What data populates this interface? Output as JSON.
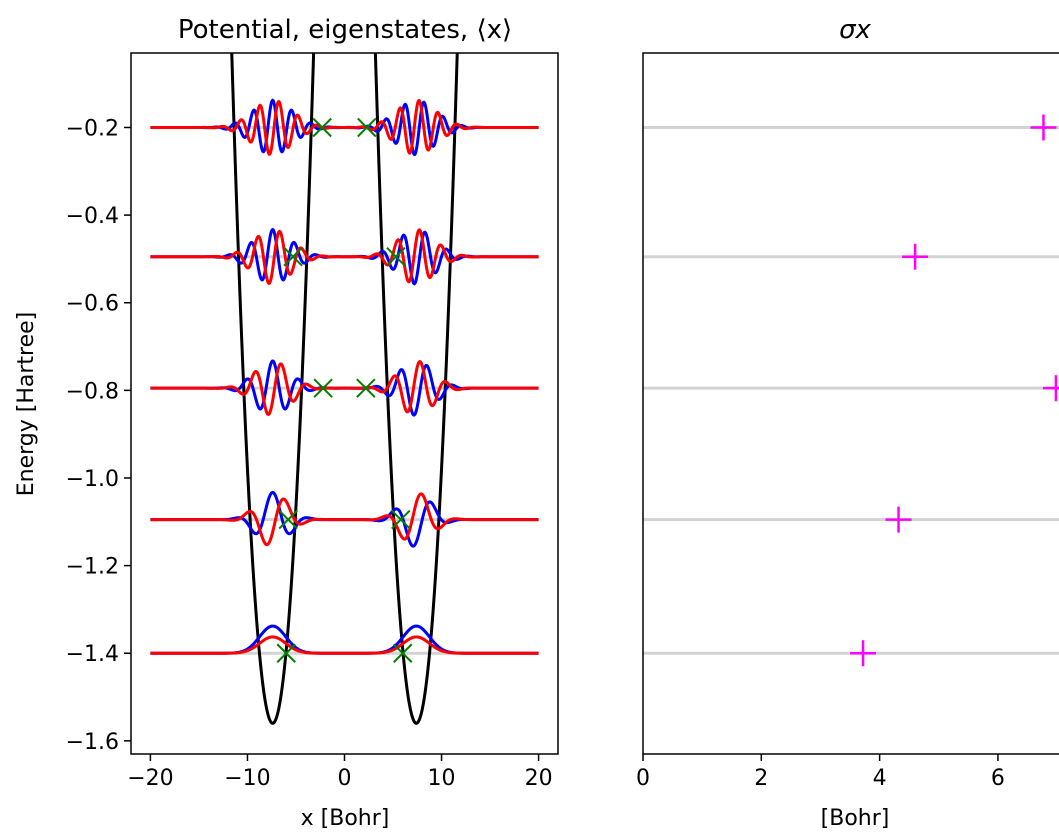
{
  "chart_data": [
    {
      "type": "line",
      "title": "Potential, eigenstates, ⟨x⟩",
      "xlabel": "x [Bohr]",
      "ylabel": "Energy [Hartree]",
      "xlim": [
        -22,
        22
      ],
      "ylim": [
        -1.63,
        -0.03
      ],
      "xticks": [
        -20,
        -10,
        0,
        10,
        20
      ],
      "yticks": [
        -1.6,
        -1.4,
        -1.2,
        -1.0,
        -0.8,
        -0.6,
        -0.4,
        -0.2
      ],
      "grid": false,
      "potential": {
        "type": "double-well",
        "wells": [
          {
            "center": -7.4,
            "k": 0.086
          },
          {
            "center": 7.4,
            "k": 0.086
          }
        ],
        "min_energy": -1.56,
        "color": "#000000"
      },
      "energy_levels": [
        -1.4,
        -1.095,
        -0.795,
        -0.495,
        -0.2
      ],
      "level_line_range": [
        -20,
        20
      ],
      "level_line_color": "#d3d3d3",
      "wavefunction_colors": {
        "real": "#0000ff",
        "imag": "#ff0000"
      },
      "wavefunction_series": [
        "blue",
        "red"
      ],
      "expectation_x": [
        [
          -6.0,
          6.0
        ],
        [
          -5.8,
          5.8
        ],
        [
          -2.2,
          2.2
        ],
        [
          -5.3,
          5.3
        ],
        [
          -2.3,
          2.3
        ]
      ],
      "expectation_marker": {
        "shape": "x",
        "color": "#008000"
      }
    },
    {
      "type": "scatter",
      "title": "σx",
      "xlabel": "[Bohr]",
      "ylabel": "",
      "xlim": [
        0,
        7.1
      ],
      "ylim": [
        -1.63,
        -0.03
      ],
      "xticks": [
        0,
        2,
        4,
        6
      ],
      "grid": false,
      "energy_levels": [
        -1.4,
        -1.095,
        -0.795,
        -0.495,
        -0.2
      ],
      "level_line_color": "#d3d3d3",
      "points": [
        {
          "x": 3.72,
          "y": -1.4
        },
        {
          "x": 4.32,
          "y": -1.095
        },
        {
          "x": 6.98,
          "y": -0.795
        },
        {
          "x": 4.6,
          "y": -0.495
        },
        {
          "x": 6.77,
          "y": -0.2
        }
      ],
      "marker": {
        "shape": "+",
        "color": "#ff00ff"
      }
    }
  ]
}
